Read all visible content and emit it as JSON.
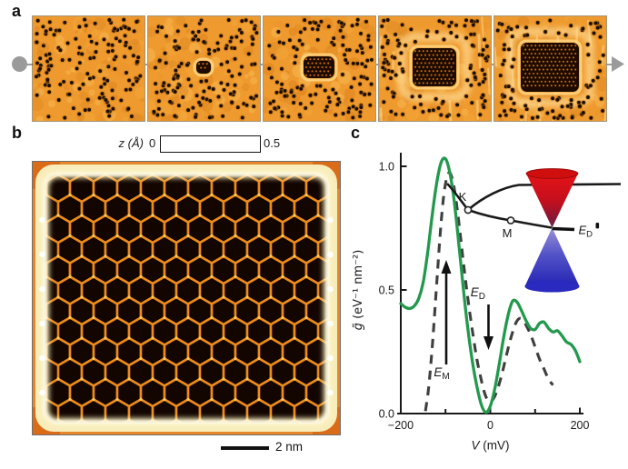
{
  "figure": {
    "panel_a": {
      "label": "a",
      "description_colors": {
        "stm_orange": "#ef9a2e",
        "dot_black": "#1a0d04"
      },
      "frames": [
        {
          "cluster_w": 0,
          "cluster_h": 0
        },
        {
          "cluster_w": 16,
          "cluster_h": 14
        },
        {
          "cluster_w": 34,
          "cluster_h": 24
        },
        {
          "cluster_w": 48,
          "cluster_h": 42
        },
        {
          "cluster_w": 64,
          "cluster_h": 54
        }
      ]
    },
    "panel_b": {
      "label": "b",
      "colorbar": {
        "title": "z (Å)",
        "min_label": "0",
        "max_label": "0.5"
      },
      "scalebar_label": "2 nm"
    },
    "panel_c": {
      "label": "c",
      "annotations": {
        "em_base": "E",
        "em_sub": "M",
        "ed_base": "E",
        "ed_sub": "D"
      },
      "inset": {
        "k_label": "K",
        "m_label": "M",
        "ed_base": "E",
        "ed_sub": "D",
        "cone_red": "#cf0e0e",
        "cone_blue": "#2222b8"
      }
    }
  },
  "chart_data": {
    "type": "line",
    "xlabel": "V (mV)",
    "xlabel_v": "V",
    "xlabel_unit": " (mV)",
    "ylabel": "g̃ (eV⁻¹ nm⁻²)",
    "ylabel_g": "g̃",
    "ylabel_unit": " (eV⁻¹ nm⁻²)",
    "xlim": [
      -200,
      200
    ],
    "ylim": [
      0,
      1.05
    ],
    "xticks": [
      -200,
      -100,
      0,
      100,
      200
    ],
    "xtick_labels": [
      "−200",
      "",
      "0",
      "",
      "200"
    ],
    "yticks": [
      0.0,
      0.5,
      1.0
    ],
    "ytick_labels": [
      "0.0",
      "0.5",
      "1.0"
    ],
    "grid": false,
    "legend": "none",
    "series": [
      {
        "name": "theory-dashed",
        "color": "#3f3f3f",
        "style": "dashed",
        "x": [
          -145,
          -138,
          -132,
          -126,
          -120,
          -113,
          -106,
          -99,
          -92,
          -85,
          -78,
          -70,
          -62,
          -54,
          -46,
          -38,
          -30,
          -22,
          -14,
          -6,
          2,
          10,
          18,
          26,
          34,
          42,
          50,
          58,
          66,
          74,
          82,
          90,
          100,
          110,
          120,
          130,
          140
        ],
        "y": [
          0.01,
          0.1,
          0.22,
          0.36,
          0.52,
          0.7,
          0.85,
          0.94,
          0.975,
          0.95,
          0.88,
          0.77,
          0.64,
          0.52,
          0.41,
          0.31,
          0.22,
          0.15,
          0.09,
          0.055,
          0.05,
          0.07,
          0.11,
          0.16,
          0.22,
          0.28,
          0.33,
          0.37,
          0.385,
          0.375,
          0.35,
          0.32,
          0.27,
          0.22,
          0.18,
          0.14,
          0.115
        ]
      },
      {
        "name": "experiment-green",
        "color": "#23994d",
        "style": "solid",
        "x": [
          -200,
          -190,
          -180,
          -170,
          -160,
          -150,
          -140,
          -130,
          -120,
          -110,
          -100,
          -90,
          -80,
          -70,
          -60,
          -50,
          -40,
          -30,
          -20,
          -10,
          0,
          10,
          20,
          30,
          40,
          50,
          60,
          70,
          80,
          90,
          100,
          110,
          120,
          130,
          140,
          150,
          160,
          170,
          180,
          190,
          200
        ],
        "y": [
          0.445,
          0.43,
          0.425,
          0.435,
          0.465,
          0.53,
          0.65,
          0.8,
          0.93,
          1.015,
          1.03,
          0.97,
          0.85,
          0.68,
          0.5,
          0.34,
          0.21,
          0.11,
          0.035,
          0.005,
          0.03,
          0.1,
          0.2,
          0.31,
          0.4,
          0.455,
          0.45,
          0.415,
          0.375,
          0.345,
          0.34,
          0.365,
          0.37,
          0.345,
          0.33,
          0.335,
          0.315,
          0.29,
          0.28,
          0.255,
          0.21
        ]
      }
    ],
    "annotations": [
      {
        "label": "E_M",
        "arrow": "up",
        "V": -98
      },
      {
        "label": "E_D",
        "arrow": "down",
        "V": -5
      }
    ]
  }
}
